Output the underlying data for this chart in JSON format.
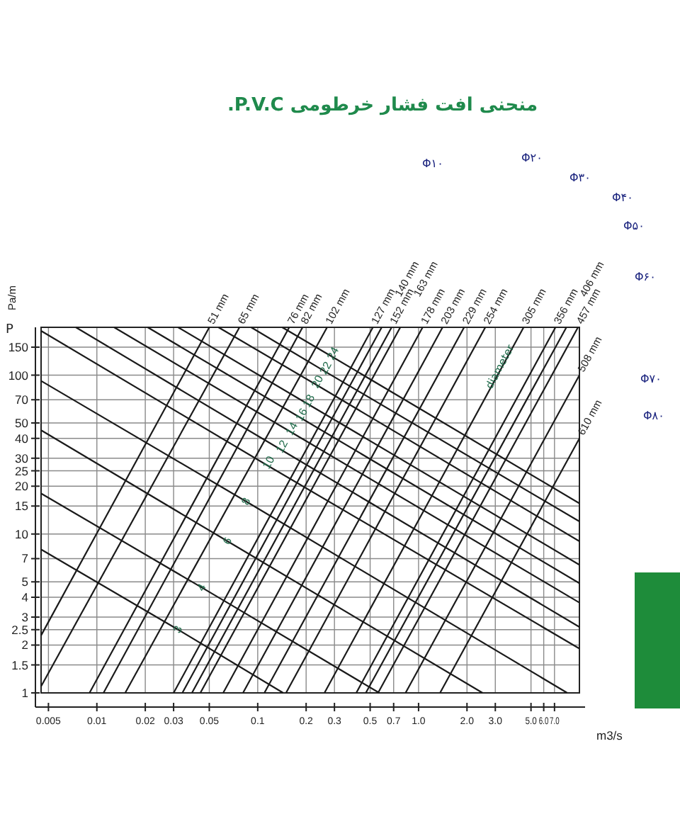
{
  "chart_data": {
    "type": "line",
    "title": "منحنی افت فشار خرطومی P.V.C.",
    "xlabel": "m3/s",
    "ylabel": "Pa/m",
    "log": "xy",
    "grid": true,
    "xlim": [
      0.0045,
      10
    ],
    "ylim": [
      1,
      200
    ],
    "xticks": [
      0.005,
      0.01,
      0.02,
      0.03,
      0.05,
      0.1,
      0.2,
      0.3,
      0.5,
      0.7,
      {
        "value": 1,
        "label": "1.0"
      },
      {
        "value": 2,
        "label": "2.0"
      },
      {
        "value": 3,
        "label": "3.0"
      },
      {
        "value": 5,
        "label": "5.0"
      },
      {
        "value": 6,
        "label": "6.0"
      },
      {
        "value": 7,
        "label": "7.0"
      }
    ],
    "yticks": [
      1,
      1.5,
      2,
      2.5,
      3,
      4,
      5,
      7,
      10,
      15,
      20,
      25,
      30,
      40,
      50,
      70,
      100,
      150
    ],
    "annotations": [
      "P",
      "diameter",
      "Φ۱۰",
      "Φ۲۰",
      "Φ۳۰",
      "Φ۴۰",
      "Φ۵۰",
      "Φ۶۰",
      "Φ۷۰",
      "Φ۸۰"
    ],
    "series": [
      {
        "name": "51 mm",
        "color": "#1a1a1a",
        "x": [
          0.0045,
          0.05
        ],
        "values": [
          2.3,
          200
        ]
      },
      {
        "name": "65 mm",
        "color": "#1a1a1a",
        "x": [
          0.0045,
          0.077
        ],
        "values": [
          1.1,
          200
        ]
      },
      {
        "name": "76 mm",
        "color": "#1a1a1a",
        "x": [
          0.009,
          0.157
        ],
        "values": [
          1,
          200
        ]
      },
      {
        "name": "82 mm",
        "color": "#1a1a1a",
        "x": [
          0.011,
          0.19
        ],
        "values": [
          1,
          200
        ]
      },
      {
        "name": "102 mm",
        "color": "#1a1a1a",
        "x": [
          0.015,
          0.27
        ],
        "values": [
          1,
          200
        ]
      },
      {
        "name": "127 mm",
        "color": "#1a1a1a",
        "x": [
          0.03,
          0.52
        ],
        "values": [
          1,
          200
        ]
      },
      {
        "name": "140 mm",
        "color": "#1a1a1a",
        "x": [
          0.034,
          0.59
        ],
        "values": [
          1,
          200
        ]
      },
      {
        "name": "152 mm",
        "color": "#1a1a1a",
        "x": [
          0.039,
          0.68
        ],
        "values": [
          1,
          200
        ]
      },
      {
        "name": "163 mm",
        "color": "#1a1a1a",
        "x": [
          0.044,
          0.77
        ],
        "values": [
          1,
          200
        ]
      },
      {
        "name": "178 mm",
        "color": "#1a1a1a",
        "x": [
          0.061,
          1.06
        ],
        "values": [
          1,
          200
        ]
      },
      {
        "name": "203 mm",
        "color": "#1a1a1a",
        "x": [
          0.081,
          1.41
        ],
        "values": [
          1,
          200
        ]
      },
      {
        "name": "229 mm",
        "color": "#1a1a1a",
        "x": [
          0.11,
          1.92
        ],
        "values": [
          1,
          200
        ]
      },
      {
        "name": "254 mm",
        "color": "#1a1a1a",
        "x": [
          0.15,
          2.6
        ],
        "values": [
          1,
          200
        ]
      },
      {
        "name": "305 mm",
        "color": "#1a1a1a",
        "x": [
          0.26,
          4.5
        ],
        "values": [
          1,
          200
        ]
      },
      {
        "name": "356 mm",
        "color": "#1a1a1a",
        "x": [
          0.41,
          7.1
        ],
        "values": [
          1,
          200
        ]
      },
      {
        "name": "406 mm",
        "color": "#1a1a1a",
        "x": [
          0.47,
          8.3
        ],
        "values": [
          1,
          200
        ]
      },
      {
        "name": "457 mm",
        "color": "#1a1a1a",
        "x": [
          0.56,
          9.8
        ],
        "values": [
          1,
          200
        ]
      },
      {
        "name": "508 mm",
        "color": "#1a1a1a",
        "x": [
          0.83,
          10
        ],
        "values": [
          1,
          100
        ]
      },
      {
        "name": "610 mm",
        "color": "#1a1a1a",
        "x": [
          1.36,
          10
        ],
        "values": [
          1,
          40
        ]
      },
      {
        "name": "3",
        "color": "#1a1a1a",
        "x": [
          0.0045,
          0.032,
          0.144
        ],
        "values": [
          8,
          2.5,
          1
        ]
      },
      {
        "name": "4",
        "color": "#1a1a1a",
        "x": [
          0.0045,
          0.045,
          0.57
        ],
        "values": [
          18,
          4.6,
          1
        ]
      },
      {
        "name": "6",
        "color": "#1a1a1a",
        "x": [
          0.0045,
          0.065,
          2.5
        ],
        "values": [
          45,
          9,
          1
        ]
      },
      {
        "name": "8",
        "color": "#1a1a1a",
        "x": [
          0.0045,
          0.085,
          8.4
        ],
        "values": [
          92,
          16,
          1
        ]
      },
      {
        "name": "10",
        "color": "#1a1a1a",
        "x": [
          0.0045,
          0.115,
          10
        ],
        "values": [
          190,
          27,
          1.9
        ]
      },
      {
        "name": "12",
        "color": "#1a1a1a",
        "x": [
          0.0074,
          0.139,
          10
        ],
        "values": [
          200,
          34,
          2.6
        ]
      },
      {
        "name": "14",
        "color": "#1a1a1a",
        "x": [
          0.0128,
          0.16,
          10
        ],
        "values": [
          200,
          44,
          3.7
        ]
      },
      {
        "name": "16",
        "color": "#1a1a1a",
        "x": [
          0.0207,
          0.184,
          10
        ],
        "values": [
          200,
          54,
          4.9
        ]
      },
      {
        "name": "18",
        "color": "#1a1a1a",
        "x": [
          0.032,
          0.204,
          10
        ],
        "values": [
          200,
          66,
          6.4
        ]
      },
      {
        "name": "20",
        "color": "#1a1a1a",
        "x": [
          0.057,
          0.231,
          10
        ],
        "values": [
          200,
          87,
          9
        ]
      },
      {
        "name": "22",
        "color": "#1a1a1a",
        "x": [
          0.091,
          0.26,
          10
        ],
        "values": [
          200,
          106,
          12
        ]
      },
      {
        "name": "24",
        "color": "#1a1a1a",
        "x": [
          0.142,
          0.289,
          10
        ],
        "values": [
          200,
          131,
          15.6
        ]
      }
    ]
  }
}
